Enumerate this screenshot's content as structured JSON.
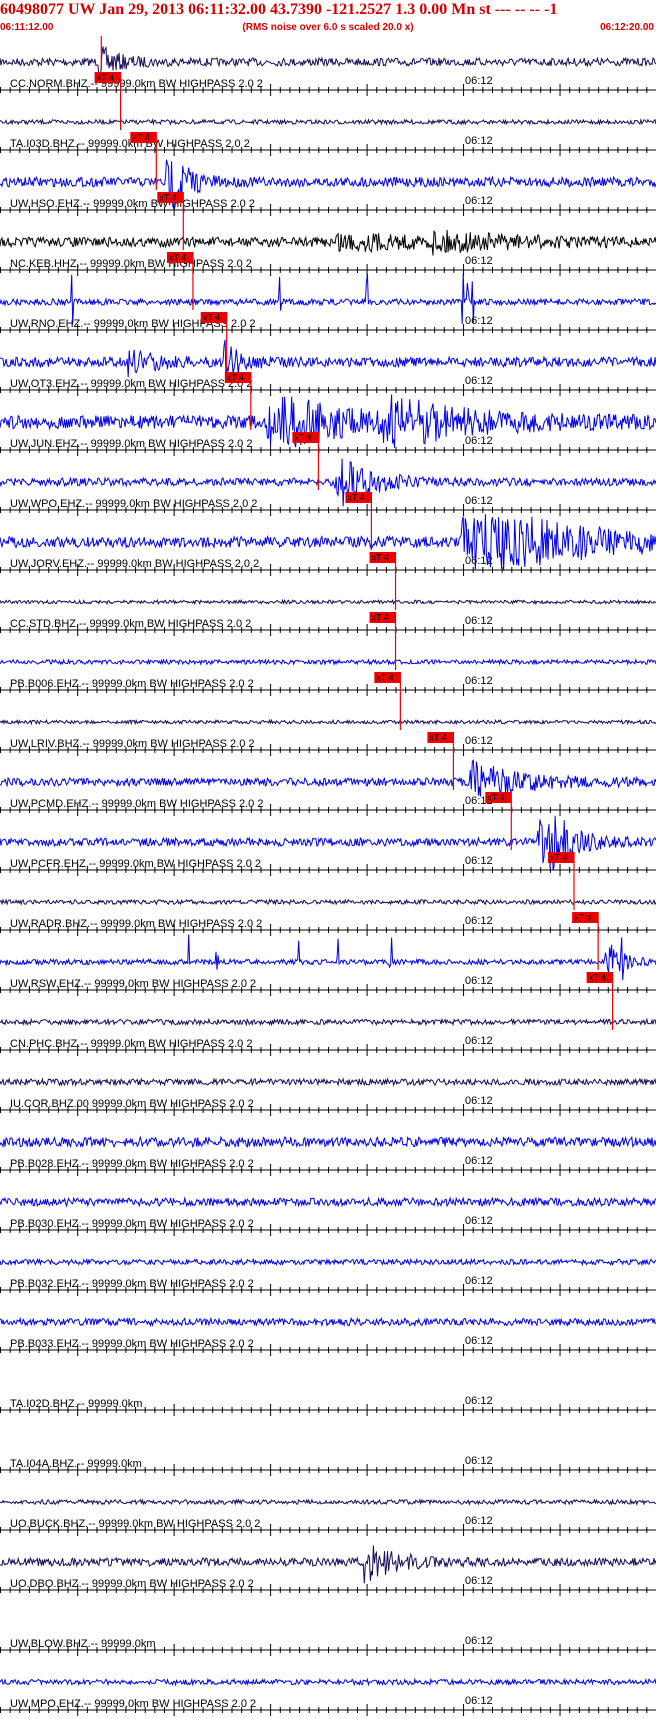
{
  "header": {
    "title": "60498077 UW Jan 29, 2013 06:11:32.00   43.7390 -121.2527  1.3 0.00 Mn st --- -- --  -1",
    "start_time": "06:11:12.00",
    "note": "(RMS noise over 6.0 s scaled 20.0 x)",
    "end_time": "06:12:20.00"
  },
  "chart_data": {
    "type": "line",
    "x_range_seconds": [
      0,
      68
    ],
    "minute_mark": {
      "label": "06:12",
      "t": 48
    },
    "pick_label": "xT 4",
    "colors": {
      "trace_blue": "#0000ee",
      "trace_dark": "#1a0a5a",
      "trace_black": "#000000",
      "pick": "#ee0000",
      "label": "#000000"
    },
    "traces": [
      {
        "label": "CC.NORM.BHZ.-- 99999.0km BW  HIGHPASS  2.0  2",
        "color": "trace_dark",
        "amp": 0.18,
        "pick": 10.5,
        "events": [
          [
            10.5,
            0.6,
            2.0
          ]
        ]
      },
      {
        "label": "TA.I03D.BHZ.-- 99999.0km BW  HIGHPASS  2.0  2",
        "color": "trace_dark",
        "amp": 0.1,
        "pick": 12.5,
        "events": []
      },
      {
        "label": "UW.HSO.EHZ.-- 99999.0km BW  HIGHPASS  2.0  2",
        "color": "trace_blue",
        "amp": 0.22,
        "pick": 16.2,
        "events": [
          [
            17.5,
            2.2,
            1.5
          ]
        ]
      },
      {
        "label": "NC.KEB.HHZ.-- 99999.0km BW  HIGHPASS  2.0  2",
        "color": "trace_black",
        "amp": 0.22,
        "pick": 19.0,
        "events": [
          [
            35,
            0.35,
            8
          ],
          [
            45,
            0.3,
            8
          ]
        ]
      },
      {
        "label": "UW.RNO.EHZ.-- 99999.0km BW  HIGHPASS  2.0  2",
        "color": "trace_blue",
        "amp": 0.14,
        "pick": 20.0,
        "spikes": [
          7.5,
          29,
          38,
          48,
          48.5,
          49
        ],
        "events": []
      },
      {
        "label": "UW.OT3.EHZ.-- 99999.0km BW  HIGHPASS  2.0  2",
        "color": "trace_blue",
        "amp": 0.22,
        "pick": 23.5,
        "events": [
          [
            13.5,
            0.5,
            2.5
          ],
          [
            23.5,
            0.8,
            1.5
          ]
        ]
      },
      {
        "label": "UW.JUN.EHZ.-- 99999.0km BW  HIGHPASS  2.0  2",
        "color": "trace_blue",
        "amp": 0.3,
        "pick": 26.0,
        "events": [
          [
            28,
            1.6,
            6
          ],
          [
            40,
            1.0,
            8
          ]
        ]
      },
      {
        "label": "UW.WPO.EHZ.-- 99999.0km BW  HIGHPASS  2.0  2",
        "color": "trace_blue",
        "amp": 0.18,
        "pick": 33.0,
        "events": [
          [
            35,
            1.3,
            3
          ]
        ]
      },
      {
        "label": "UW.JORV.EHZ.-- 99999.0km BW  HIGHPASS  2.0  2",
        "color": "trace_blue",
        "amp": 0.25,
        "pick": 38.5,
        "events": [
          [
            48,
            2.0,
            10
          ]
        ]
      },
      {
        "label": "CC.STD.BHZ.-- 99999.0km BW  HIGHPASS  2.0  2",
        "color": "trace_dark",
        "amp": 0.08,
        "pick": 41.0,
        "events": []
      },
      {
        "label": "PB.B006.EHZ.-- 99999.0km BW  HIGHPASS  2.0  2",
        "color": "trace_blue",
        "amp": 0.1,
        "pick": 41.0,
        "events": []
      },
      {
        "label": "UW.LRIV.BHZ.-- 99999.0km BW  HIGHPASS  2.0  2",
        "color": "trace_dark",
        "amp": 0.08,
        "pick": 41.5,
        "events": []
      },
      {
        "label": "UW.PCMD.EHZ.-- 99999.0km BW  HIGHPASS  2.0  2",
        "color": "trace_blue",
        "amp": 0.18,
        "pick": 47.0,
        "events": [
          [
            49,
            0.9,
            5
          ]
        ]
      },
      {
        "label": "UW.PCFR.EHZ.-- 99999.0km BW  HIGHPASS  2.0  2",
        "color": "trace_blue",
        "amp": 0.18,
        "pick": 53.0,
        "events": [
          [
            56,
            2.2,
            2.5
          ]
        ]
      },
      {
        "label": "UW.RADR.BHZ.-- 99999.0km BW  HIGHPASS  2.0  2",
        "color": "trace_dark",
        "amp": 0.1,
        "pick": 59.5,
        "events": []
      },
      {
        "label": "UW.RSW.EHZ.-- 99999.0km BW  HIGHPASS  2.0  2",
        "color": "trace_blue",
        "amp": 0.12,
        "pick": 62.0,
        "spikes": [
          19.5,
          22.5,
          31,
          35,
          40.5,
          63,
          64.5
        ],
        "events": [
          [
            63,
            1.0,
            1.5
          ]
        ]
      },
      {
        "label": "CN.PHC.BHZ.-- 99999.0km BW  HIGHPASS  2.0  2",
        "color": "trace_dark",
        "amp": 0.12,
        "pick": 63.5,
        "events": []
      },
      {
        "label": "IU.COR.BHZ.00 99999.0km BW  HIGHPASS  2.0  2",
        "color": "trace_dark",
        "amp": 0.14,
        "pick": null,
        "events": []
      },
      {
        "label": "PB.B028.EHZ.-- 99999.0km BW  HIGHPASS  2.0  2",
        "color": "trace_blue",
        "amp": 0.22,
        "pick": null,
        "events": []
      },
      {
        "label": "PB.B030.EHZ.-- 99999.0km BW  HIGHPASS  2.0  2",
        "color": "trace_blue",
        "amp": 0.18,
        "pick": null,
        "events": []
      },
      {
        "label": "PB.B032.EHZ.-- 99999.0km BW  HIGHPASS  2.0  2",
        "color": "trace_blue",
        "amp": 0.12,
        "pick": null,
        "events": []
      },
      {
        "label": "PB.B033.EHZ.-- 99999.0km BW  HIGHPASS  2.0  2",
        "color": "trace_blue",
        "amp": 0.16,
        "pick": null,
        "events": []
      },
      {
        "label": "TA.I02D.BHZ.-- 99999.0km",
        "color": "trace_dark",
        "amp": 0.0,
        "pick": null,
        "events": []
      },
      {
        "label": "TA.I04A.BHZ.-- 99999.0km",
        "color": "trace_dark",
        "amp": 0.0,
        "pick": null,
        "events": []
      },
      {
        "label": "UO.BUCK.BHZ.-- 99999.0km BW  HIGHPASS  2.0  2",
        "color": "trace_dark",
        "amp": 0.1,
        "pick": null,
        "events": []
      },
      {
        "label": "UO.DBO.BHZ.-- 99999.0km BW  HIGHPASS  2.0  2",
        "color": "trace_dark",
        "amp": 0.18,
        "pick": null,
        "events": [
          [
            38,
            0.8,
            3
          ]
        ]
      },
      {
        "label": "UW.BLOW.BHZ.-- 99999.0km",
        "color": "trace_dark",
        "amp": 0.0,
        "pick": null,
        "events": []
      },
      {
        "label": "UW.MPO.EHZ.-- 99999.0km BW  HIGHPASS  2.0  2",
        "color": "trace_blue",
        "amp": 0.12,
        "pick": null,
        "events": []
      }
    ]
  }
}
